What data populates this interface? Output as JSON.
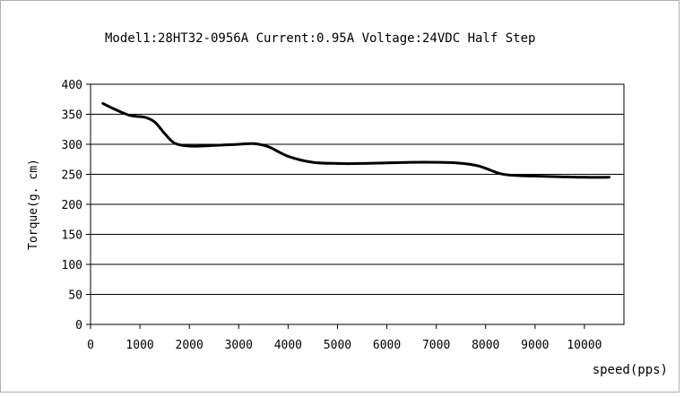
{
  "chart_data": {
    "type": "line",
    "title": "Model1:28HT32-0956A Current:0.95A Voltage:24VDC Half Step",
    "xlabel": "speed(pps)",
    "ylabel": "Torque(g. cm)",
    "xlim": [
      0,
      10800
    ],
    "ylim": [
      0,
      400
    ],
    "x_ticks": [
      0,
      1000,
      2000,
      3000,
      4000,
      5000,
      6000,
      7000,
      8000,
      9000,
      10000
    ],
    "y_ticks": [
      0,
      50,
      100,
      150,
      200,
      250,
      300,
      350,
      400
    ],
    "grid": "horizontal",
    "legend": "none",
    "line_color": "#000000",
    "series": [
      {
        "x": [
          250,
          500,
          800,
          1100,
          1300,
          1500,
          1700,
          2000,
          2500,
          3000,
          3300,
          3600,
          4000,
          4500,
          5000,
          5500,
          6000,
          6500,
          7000,
          7400,
          7800,
          8000,
          8300,
          8600,
          9000,
          9500,
          10000,
          10500
        ],
        "values": [
          368,
          358,
          348,
          345,
          337,
          318,
          302,
          297,
          298,
          300,
          301,
          296,
          280,
          270,
          268,
          268,
          269,
          270,
          270,
          269,
          265,
          260,
          251,
          248,
          247,
          246,
          245,
          245
        ]
      }
    ]
  }
}
